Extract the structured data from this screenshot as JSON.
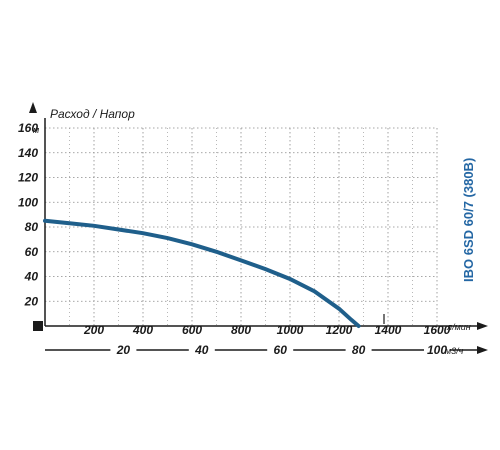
{
  "chart_data": {
    "type": "line",
    "title": "Расход / Напор",
    "model": "IBO 6SD 60/7 (380B)",
    "y_unit": "м",
    "x_unit": "л/мин",
    "x2_unit": "м3/ч",
    "xlim": [
      0,
      1600
    ],
    "ylim": [
      0,
      160
    ],
    "x_ticks": [
      200,
      400,
      600,
      800,
      1000,
      1200,
      1400,
      1600
    ],
    "y_ticks": [
      20,
      40,
      60,
      80,
      100,
      120,
      140,
      160
    ],
    "x2_ticks": [
      20,
      40,
      60,
      80,
      100
    ],
    "grid": true,
    "colors": {
      "curve": "#1f5f8b",
      "model_label": "#2467a4",
      "grid": "#8a8a8a",
      "axis": "#1b1b1b"
    },
    "series": [
      {
        "x": [
          0,
          100,
          200,
          300,
          400,
          500,
          600,
          700,
          800,
          900,
          1000,
          1100,
          1200,
          1250,
          1280
        ],
        "y": [
          85,
          83,
          81,
          78,
          75,
          71,
          66,
          60,
          53,
          46,
          38,
          28,
          14,
          5,
          0
        ]
      }
    ]
  }
}
